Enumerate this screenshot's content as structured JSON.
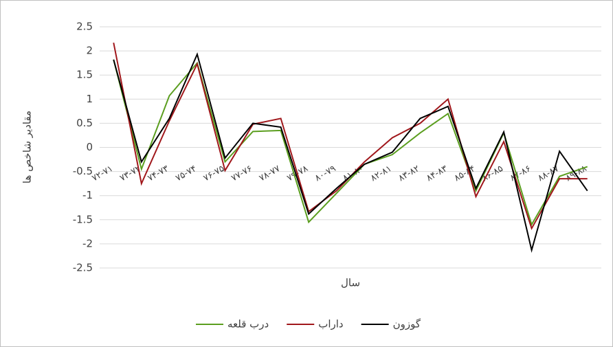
{
  "chart_data": {
    "type": "line",
    "xlabel": "سال",
    "ylabel": "مقادیر شاخص ها",
    "categories": [
      "۷۲-۷۱",
      "۷۳-۷۲",
      "۷۴-۷۳",
      "۷۵-۷۴",
      "۷۶-۷۵",
      "۷۷-۷۶",
      "۷۸-۷۷",
      "۷۹-۷۸",
      "۸۰-۷۹",
      "۸۱-۸۰",
      "۸۲-۸۱",
      "۸۳-۸۲",
      "۸۴-۸۳",
      "۸۵-۸۴",
      "۸۶-۸۵",
      "۸۷-۸۶",
      "۸۸-۸۷",
      "۸۹-۸۸"
    ],
    "series": [
      {
        "name": "درب قلعه",
        "color": "#5b9e1f",
        "values": [
          1.82,
          -0.45,
          1.07,
          1.75,
          -0.3,
          0.33,
          0.35,
          -1.55,
          -0.95,
          -0.35,
          -0.15,
          0.3,
          0.7,
          -0.9,
          0.3,
          -1.6,
          -0.6,
          -0.4
        ]
      },
      {
        "name": "داراب",
        "color": "#a0171b",
        "values": [
          2.17,
          -0.75,
          0.55,
          1.73,
          -0.48,
          0.48,
          0.6,
          -1.33,
          -0.9,
          -0.3,
          0.2,
          0.5,
          1.0,
          -1.02,
          0.12,
          -1.68,
          -0.65,
          -0.65
        ]
      },
      {
        "name": "گوزون",
        "color": "#000000",
        "values": [
          1.82,
          -0.3,
          0.6,
          1.93,
          -0.22,
          0.5,
          0.42,
          -1.38,
          -0.85,
          -0.35,
          -0.1,
          0.6,
          0.85,
          -0.85,
          0.32,
          -2.13,
          -0.08,
          -0.9
        ]
      }
    ],
    "ylim": [
      -2.5,
      2.5
    ],
    "yticks": [
      2.5,
      2,
      1.5,
      1,
      0.5,
      0,
      -0.5,
      -1,
      -1.5,
      -2,
      -2.5
    ],
    "grid": true
  }
}
